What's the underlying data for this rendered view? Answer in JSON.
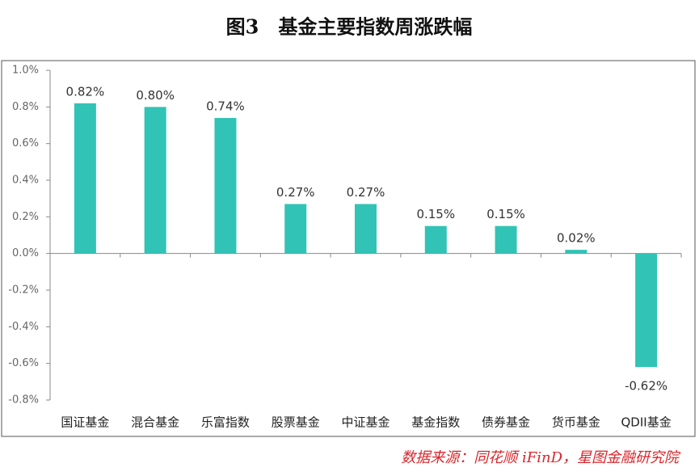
{
  "chart_data": {
    "type": "bar",
    "title": "图3　基金主要指数周涨跌幅",
    "source": "数据来源：同花顺 iFinD，星图金融研究院",
    "categories": [
      "国证基金",
      "混合基金",
      "乐富指数",
      "股票基金",
      "中证基金",
      "基金指数",
      "债券基金",
      "货币基金",
      "QDII基金"
    ],
    "values": [
      0.82,
      0.8,
      0.74,
      0.27,
      0.27,
      0.15,
      0.15,
      0.02,
      -0.62
    ],
    "value_labels": [
      "0.82%",
      "0.80%",
      "0.74%",
      "0.27%",
      "0.27%",
      "0.15%",
      "0.15%",
      "0.02%",
      "-0.62%"
    ],
    "color": "#31c3b5",
    "ylim": [
      -0.8,
      1.0
    ],
    "yticks": [
      {
        "value": -0.8,
        "label": "-0.8%"
      },
      {
        "value": -0.6,
        "label": "-0.6%"
      },
      {
        "value": -0.4,
        "label": "-0.4%"
      },
      {
        "value": -0.2,
        "label": "-0.2%"
      },
      {
        "value": 0,
        "label": "0.0%"
      },
      {
        "value": 0.2,
        "label": "0.2%"
      },
      {
        "value": 0.4,
        "label": "0.4%"
      },
      {
        "value": 0.6,
        "label": "0.6%"
      },
      {
        "value": 0.8,
        "label": "0.8%"
      },
      {
        "value": 1.0,
        "label": "1.0%"
      }
    ],
    "grid": false
  }
}
